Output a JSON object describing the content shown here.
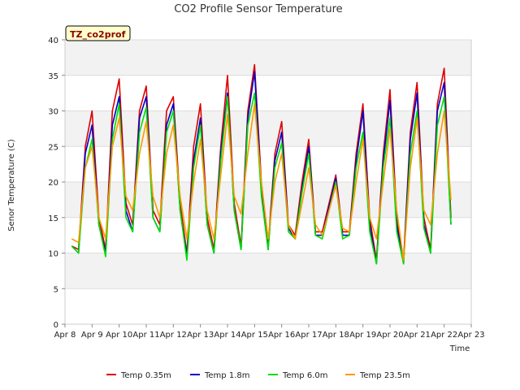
{
  "chart_data": {
    "type": "line",
    "title": "CO2 Profile Sensor Temperature",
    "xlabel": "Time",
    "ylabel": "Senor Temperature (C)",
    "tag": "TZ_co2prof",
    "ylim": [
      0,
      40
    ],
    "yticks": [
      0,
      5,
      10,
      15,
      20,
      25,
      30,
      35,
      40
    ],
    "xlim": [
      8,
      23
    ],
    "xticks": [
      {
        "x": 8,
        "label": "Apr 8"
      },
      {
        "x": 9,
        "label": "Apr 9"
      },
      {
        "x": 10,
        "label": "Apr 10"
      },
      {
        "x": 11,
        "label": "Apr 11"
      },
      {
        "x": 12,
        "label": "Apr 12"
      },
      {
        "x": 13,
        "label": "Apr 13"
      },
      {
        "x": 14,
        "label": "Apr 14"
      },
      {
        "x": 15,
        "label": "Apr 15"
      },
      {
        "x": 16,
        "label": "Apr 16"
      },
      {
        "x": 17,
        "label": "Apr 17"
      },
      {
        "x": 18,
        "label": "Apr 18"
      },
      {
        "x": 19,
        "label": "Apr 19"
      },
      {
        "x": 20,
        "label": "Apr 20"
      },
      {
        "x": 21,
        "label": "Apr 21"
      },
      {
        "x": 22,
        "label": "Apr 22"
      },
      {
        "x": 23,
        "label": "Apr 23"
      }
    ],
    "x_unit": "day of April",
    "grid": true,
    "legend_position": "bottom",
    "series": [
      {
        "name": "Temp 0.35m",
        "color": "#dd0000",
        "x": [
          8.25,
          8.5,
          8.75,
          9.0,
          9.25,
          9.5,
          9.75,
          10.0,
          10.25,
          10.5,
          10.75,
          11.0,
          11.25,
          11.5,
          11.75,
          12.0,
          12.25,
          12.5,
          12.75,
          13.0,
          13.25,
          13.5,
          13.75,
          14.0,
          14.25,
          14.5,
          14.75,
          15.0,
          15.25,
          15.5,
          15.75,
          16.0,
          16.25,
          16.5,
          16.75,
          17.0,
          17.25,
          17.5,
          17.75,
          18.0,
          18.25,
          18.5,
          18.75,
          19.0,
          19.25,
          19.5,
          19.75,
          20.0,
          20.25,
          20.5,
          20.75,
          21.0,
          21.25,
          21.5,
          21.75,
          22.0,
          22.25
        ],
        "y": [
          11,
          10.5,
          25,
          30,
          15,
          10.5,
          30,
          34.5,
          17,
          14,
          30,
          33.5,
          16,
          14,
          30,
          32,
          17,
          10,
          25,
          31,
          15,
          10.5,
          25,
          35,
          17,
          11,
          30,
          36.5,
          20,
          11,
          24,
          28.5,
          14,
          12.5,
          20,
          26,
          13,
          13,
          17,
          21,
          13,
          13,
          24,
          31,
          15,
          9,
          24,
          33,
          15,
          9,
          27,
          34,
          15,
          10.5,
          31,
          36,
          15
        ]
      },
      {
        "name": "Temp 1.8m",
        "color": "#0000cc",
        "x": [
          8.25,
          8.5,
          8.75,
          9.0,
          9.25,
          9.5,
          9.75,
          10.0,
          10.25,
          10.5,
          10.75,
          11.0,
          11.25,
          11.5,
          11.75,
          12.0,
          12.25,
          12.5,
          12.75,
          13.0,
          13.25,
          13.5,
          13.75,
          14.0,
          14.25,
          14.5,
          14.75,
          15.0,
          15.25,
          15.5,
          15.75,
          16.0,
          16.25,
          16.5,
          16.75,
          17.0,
          17.25,
          17.5,
          17.75,
          18.0,
          18.25,
          18.5,
          18.75,
          19.0,
          19.25,
          19.5,
          19.75,
          20.0,
          20.25,
          20.5,
          20.75,
          21.0,
          21.25,
          21.5,
          21.75,
          22.0,
          22.25
        ],
        "y": [
          11,
          10,
          24,
          28,
          14,
          10,
          28,
          32,
          16,
          13,
          29,
          32,
          15,
          13,
          28,
          31,
          16,
          9.5,
          23,
          29,
          14,
          10,
          24,
          32.5,
          16,
          10.5,
          29,
          35.5,
          19,
          10.5,
          23,
          27,
          13.5,
          12,
          19,
          25,
          12.5,
          12.5,
          16.5,
          20.5,
          12.5,
          12.5,
          23,
          30,
          14,
          8.5,
          23,
          31.5,
          14,
          8.5,
          26,
          32.5,
          14,
          10,
          30,
          34,
          14
        ]
      },
      {
        "name": "Temp 6.0m",
        "color": "#00dd00",
        "x": [
          8.25,
          8.5,
          8.75,
          9.0,
          9.25,
          9.5,
          9.75,
          10.0,
          10.25,
          10.5,
          10.75,
          11.0,
          11.25,
          11.5,
          11.75,
          12.0,
          12.25,
          12.5,
          12.75,
          13.0,
          13.25,
          13.5,
          13.75,
          14.0,
          14.25,
          14.5,
          14.75,
          15.0,
          15.25,
          15.5,
          15.75,
          16.0,
          16.25,
          16.5,
          16.75,
          17.0,
          17.25,
          17.5,
          17.75,
          18.0,
          18.25,
          18.5,
          18.75,
          19.0,
          19.25,
          19.5,
          19.75,
          20.0,
          20.25,
          20.5,
          20.75,
          21.0,
          21.25,
          21.5,
          21.75,
          22.0,
          22.25
        ],
        "y": [
          11,
          10,
          22,
          26,
          14,
          9.5,
          26,
          31,
          15,
          13,
          27,
          30.5,
          15,
          13,
          27,
          30,
          16,
          9,
          22,
          28,
          14,
          10,
          23,
          32,
          16,
          10.5,
          28,
          32.5,
          18,
          10.5,
          22,
          25.5,
          13,
          12,
          18.5,
          24,
          12.5,
          12,
          16,
          20,
          12,
          12.5,
          22,
          27,
          13,
          8.5,
          22,
          29,
          13,
          8.5,
          24,
          30,
          13.5,
          10,
          28,
          32,
          14
        ]
      },
      {
        "name": "Temp 23.5m",
        "color": "#ff9900",
        "x": [
          8.25,
          8.5,
          8.75,
          9.0,
          9.25,
          9.5,
          9.75,
          10.0,
          10.25,
          10.5,
          10.75,
          11.0,
          11.25,
          11.5,
          11.75,
          12.0,
          12.25,
          12.5,
          12.75,
          13.0,
          13.25,
          13.5,
          13.75,
          14.0,
          14.25,
          14.5,
          14.75,
          15.0,
          15.25,
          15.5,
          15.75,
          16.0,
          16.25,
          16.5,
          16.75,
          17.0,
          17.25,
          17.5,
          17.75,
          18.0,
          18.25,
          18.5,
          18.75,
          19.0,
          19.25,
          19.5,
          19.75,
          20.0,
          20.25,
          20.5,
          20.75,
          21.0,
          21.25,
          21.5,
          21.75,
          22.0,
          22.25
        ],
        "y": [
          12,
          11.5,
          22,
          25,
          15,
          12,
          25,
          29,
          18,
          16,
          24,
          28.5,
          18,
          15,
          24,
          28,
          18,
          12,
          20,
          26,
          16,
          12,
          21,
          29.5,
          18,
          15.5,
          24,
          31,
          20,
          12,
          20,
          24,
          14,
          12,
          17,
          22,
          14,
          12.5,
          16,
          19.5,
          13.5,
          13,
          20,
          26,
          15,
          12,
          20,
          27.5,
          16,
          9,
          22,
          29,
          16,
          14,
          24,
          30,
          17.5
        ]
      }
    ]
  }
}
